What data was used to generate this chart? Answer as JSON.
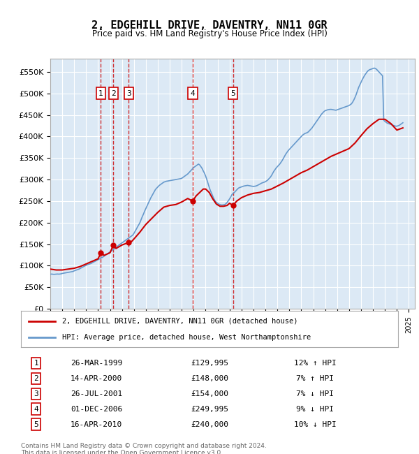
{
  "title": "2, EDGEHILL DRIVE, DAVENTRY, NN11 0GR",
  "subtitle": "Price paid vs. HM Land Registry's House Price Index (HPI)",
  "footer": "Contains HM Land Registry data © Crown copyright and database right 2024.\nThis data is licensed under the Open Government Licence v3.0.",
  "legend_line1": "2, EDGEHILL DRIVE, DAVENTRY, NN11 0GR (detached house)",
  "legend_line2": "HPI: Average price, detached house, West Northamptonshire",
  "table": [
    {
      "num": "1",
      "date": "26-MAR-1999",
      "price": "£129,995",
      "hpi": "12% ↑ HPI"
    },
    {
      "num": "2",
      "date": "14-APR-2000",
      "price": "£148,000",
      "hpi": "7% ↑ HPI"
    },
    {
      "num": "3",
      "date": "26-JUL-2001",
      "price": "£154,000",
      "hpi": "7% ↓ HPI"
    },
    {
      "num": "4",
      "date": "01-DEC-2006",
      "price": "£249,995",
      "hpi": "9% ↓ HPI"
    },
    {
      "num": "5",
      "date": "16-APR-2010",
      "price": "£240,000",
      "hpi": "10% ↓ HPI"
    }
  ],
  "sale_dates_decimal": [
    1999.23,
    2000.28,
    2001.57,
    2006.92,
    2010.29
  ],
  "sale_prices": [
    129995,
    148000,
    154000,
    249995,
    240000
  ],
  "red_color": "#cc0000",
  "blue_color": "#6699cc",
  "vline_color": "#cc0000",
  "bg_color": "#dce9f5",
  "plot_bg": "#dce9f5",
  "grid_color": "#ffffff",
  "ylim": [
    0,
    580000
  ],
  "yticks": [
    0,
    50000,
    100000,
    150000,
    200000,
    250000,
    300000,
    350000,
    400000,
    450000,
    500000,
    550000
  ],
  "xlim_start": 1995.0,
  "xlim_end": 2025.5,
  "hpi_data": {
    "years": [
      1995.0,
      1995.1,
      1995.2,
      1995.3,
      1995.4,
      1995.5,
      1995.6,
      1995.7,
      1995.8,
      1995.9,
      1996.0,
      1996.1,
      1996.2,
      1996.3,
      1996.4,
      1996.5,
      1996.6,
      1996.7,
      1996.8,
      1996.9,
      1997.0,
      1997.1,
      1997.2,
      1997.3,
      1997.4,
      1997.5,
      1997.6,
      1997.7,
      1997.8,
      1997.9,
      1998.0,
      1998.1,
      1998.2,
      1998.3,
      1998.4,
      1998.5,
      1998.6,
      1998.7,
      1998.8,
      1998.9,
      1999.0,
      1999.1,
      1999.2,
      1999.3,
      1999.4,
      1999.5,
      1999.6,
      1999.7,
      1999.8,
      1999.9,
      2000.0,
      2000.1,
      2000.2,
      2000.3,
      2000.4,
      2000.5,
      2000.6,
      2000.7,
      2000.8,
      2000.9,
      2001.0,
      2001.1,
      2001.2,
      2001.3,
      2001.4,
      2001.5,
      2001.6,
      2001.7,
      2001.8,
      2001.9,
      2002.0,
      2002.1,
      2002.2,
      2002.3,
      2002.4,
      2002.5,
      2002.6,
      2002.7,
      2002.8,
      2002.9,
      2003.0,
      2003.1,
      2003.2,
      2003.3,
      2003.4,
      2003.5,
      2003.6,
      2003.7,
      2003.8,
      2003.9,
      2004.0,
      2004.1,
      2004.2,
      2004.3,
      2004.4,
      2004.5,
      2004.6,
      2004.7,
      2004.8,
      2004.9,
      2005.0,
      2005.1,
      2005.2,
      2005.3,
      2005.4,
      2005.5,
      2005.6,
      2005.7,
      2005.8,
      2005.9,
      2006.0,
      2006.1,
      2006.2,
      2006.3,
      2006.4,
      2006.5,
      2006.6,
      2006.7,
      2006.8,
      2006.9,
      2007.0,
      2007.1,
      2007.2,
      2007.3,
      2007.4,
      2007.5,
      2007.6,
      2007.7,
      2007.8,
      2007.9,
      2008.0,
      2008.1,
      2008.2,
      2008.3,
      2008.4,
      2008.5,
      2008.6,
      2008.7,
      2008.8,
      2008.9,
      2009.0,
      2009.1,
      2009.2,
      2009.3,
      2009.4,
      2009.5,
      2009.6,
      2009.7,
      2009.8,
      2009.9,
      2010.0,
      2010.1,
      2010.2,
      2010.3,
      2010.4,
      2010.5,
      2010.6,
      2010.7,
      2010.8,
      2010.9,
      2011.0,
      2011.1,
      2011.2,
      2011.3,
      2011.4,
      2011.5,
      2011.6,
      2011.7,
      2011.8,
      2011.9,
      2012.0,
      2012.1,
      2012.2,
      2012.3,
      2012.4,
      2012.5,
      2012.6,
      2012.7,
      2012.8,
      2012.9,
      2013.0,
      2013.1,
      2013.2,
      2013.3,
      2013.4,
      2013.5,
      2013.6,
      2013.7,
      2013.8,
      2013.9,
      2014.0,
      2014.1,
      2014.2,
      2014.3,
      2014.4,
      2014.5,
      2014.6,
      2014.7,
      2014.8,
      2014.9,
      2015.0,
      2015.1,
      2015.2,
      2015.3,
      2015.4,
      2015.5,
      2015.6,
      2015.7,
      2015.8,
      2015.9,
      2016.0,
      2016.1,
      2016.2,
      2016.3,
      2016.4,
      2016.5,
      2016.6,
      2016.7,
      2016.8,
      2016.9,
      2017.0,
      2017.1,
      2017.2,
      2017.3,
      2017.4,
      2017.5,
      2017.6,
      2017.7,
      2017.8,
      2017.9,
      2018.0,
      2018.1,
      2018.2,
      2018.3,
      2018.4,
      2018.5,
      2018.6,
      2018.7,
      2018.8,
      2018.9,
      2019.0,
      2019.1,
      2019.2,
      2019.3,
      2019.4,
      2019.5,
      2019.6,
      2019.7,
      2019.8,
      2019.9,
      2020.0,
      2020.1,
      2020.2,
      2020.3,
      2020.4,
      2020.5,
      2020.6,
      2020.7,
      2020.8,
      2020.9,
      2021.0,
      2021.1,
      2021.2,
      2021.3,
      2021.4,
      2021.5,
      2021.6,
      2021.7,
      2021.8,
      2021.9,
      2022.0,
      2022.1,
      2022.2,
      2022.3,
      2022.4,
      2022.5,
      2022.6,
      2022.7,
      2022.8,
      2022.9,
      2023.0,
      2023.1,
      2023.2,
      2023.3,
      2023.4,
      2023.5,
      2023.6,
      2023.7,
      2023.8,
      2023.9,
      2024.0,
      2024.1,
      2024.2,
      2024.3,
      2024.4,
      2024.5
    ],
    "values": [
      80000,
      80500,
      80200,
      79800,
      80100,
      80400,
      80600,
      80300,
      80500,
      81000,
      82000,
      82500,
      83000,
      83500,
      84000,
      84500,
      85000,
      85500,
      86000,
      86500,
      88000,
      89000,
      90000,
      91000,
      92000,
      93500,
      95000,
      96500,
      98000,
      99500,
      101000,
      102000,
      103000,
      104000,
      105000,
      106500,
      108000,
      109500,
      111000,
      112500,
      114000,
      115500,
      117000,
      118500,
      120000,
      122000,
      124000,
      126000,
      128000,
      130000,
      132000,
      134000,
      136000,
      138000,
      140000,
      142000,
      144500,
      147000,
      149000,
      151000,
      153000,
      155000,
      157000,
      159000,
      161000,
      163000,
      165000,
      167000,
      169000,
      171000,
      175000,
      180000,
      185000,
      190000,
      195000,
      200000,
      207000,
      214000,
      220000,
      227000,
      233000,
      239000,
      245000,
      251000,
      257000,
      262000,
      267000,
      272000,
      277000,
      280000,
      283000,
      286000,
      288000,
      290000,
      292000,
      294000,
      295000,
      296000,
      296500,
      297000,
      297500,
      298000,
      298500,
      299000,
      299500,
      300000,
      300500,
      301000,
      301500,
      302000,
      303000,
      305000,
      307000,
      309000,
      311000,
      313000,
      316000,
      319000,
      322000,
      325000,
      328000,
      330000,
      332000,
      334000,
      336000,
      334000,
      330000,
      326000,
      320000,
      315000,
      308000,
      300000,
      291000,
      282000,
      274000,
      268000,
      261000,
      255000,
      250000,
      247000,
      245000,
      243000,
      242000,
      241000,
      241000,
      241500,
      242000,
      244000,
      247000,
      251000,
      255000,
      260000,
      265000,
      268000,
      270000,
      273000,
      276000,
      279000,
      281000,
      282000,
      283000,
      284000,
      285000,
      285500,
      286000,
      286500,
      286000,
      285500,
      285000,
      284500,
      284000,
      284500,
      285000,
      286000,
      287500,
      289000,
      290500,
      292000,
      293000,
      294000,
      295000,
      297000,
      299000,
      302000,
      305000,
      309000,
      314000,
      319000,
      323000,
      327000,
      330000,
      333000,
      336000,
      340000,
      344000,
      349000,
      354000,
      359000,
      363000,
      367000,
      370000,
      373000,
      376000,
      379000,
      382000,
      385000,
      388000,
      391000,
      394000,
      397000,
      400000,
      403000,
      405000,
      407000,
      408000,
      409000,
      411000,
      414000,
      417000,
      420000,
      424000,
      428000,
      432000,
      436000,
      440000,
      444000,
      448000,
      452000,
      455000,
      458000,
      460000,
      461000,
      462000,
      462500,
      463000,
      463000,
      462500,
      462000,
      461500,
      461000,
      462000,
      463000,
      464000,
      465000,
      466000,
      467000,
      468000,
      469000,
      470000,
      471000,
      472000,
      474000,
      476000,
      480000,
      485000,
      491000,
      498000,
      506000,
      514000,
      520000,
      526000,
      532000,
      537000,
      542000,
      546000,
      550000,
      553000,
      555000,
      556000,
      557000,
      558000,
      559000,
      558000,
      556000,
      553000,
      550000,
      547000,
      544000,
      541000,
      438000,
      435000,
      433000,
      431000,
      430000,
      429000,
      428000,
      427000,
      426000,
      425000,
      424000,
      424000,
      425000,
      426000,
      428000,
      430000,
      432000
    ]
  },
  "red_line_data": {
    "years": [
      1995.0,
      1995.5,
      1996.0,
      1996.5,
      1997.0,
      1997.5,
      1998.0,
      1998.5,
      1999.0,
      1999.23,
      1999.5,
      2000.0,
      2000.28,
      2000.5,
      2001.0,
      2001.57,
      2001.8,
      2002.0,
      2002.5,
      2003.0,
      2003.5,
      2004.0,
      2004.5,
      2005.0,
      2005.5,
      2006.0,
      2006.5,
      2006.92,
      2007.2,
      2007.5,
      2007.8,
      2008.0,
      2008.3,
      2008.6,
      2008.9,
      2009.2,
      2009.5,
      2009.8,
      2010.0,
      2010.29,
      2010.6,
      2011.0,
      2011.5,
      2012.0,
      2012.5,
      2013.0,
      2013.5,
      2014.0,
      2014.5,
      2015.0,
      2015.5,
      2016.0,
      2016.5,
      2017.0,
      2017.5,
      2018.0,
      2018.5,
      2019.0,
      2019.5,
      2020.0,
      2020.5,
      2021.0,
      2021.5,
      2022.0,
      2022.5,
      2023.0,
      2023.5,
      2024.0,
      2024.5
    ],
    "values": [
      92000,
      90000,
      90000,
      92000,
      94000,
      98000,
      104000,
      110000,
      116000,
      129995,
      124000,
      130000,
      148000,
      140000,
      148000,
      154000,
      156000,
      162000,
      178000,
      196000,
      210000,
      224000,
      236000,
      240000,
      242000,
      248000,
      256000,
      249995,
      262000,
      270000,
      278000,
      278000,
      270000,
      255000,
      243000,
      238000,
      238000,
      240000,
      245000,
      240000,
      250000,
      258000,
      264000,
      268000,
      270000,
      274000,
      278000,
      285000,
      292000,
      300000,
      308000,
      316000,
      322000,
      330000,
      338000,
      346000,
      354000,
      360000,
      366000,
      372000,
      385000,
      402000,
      418000,
      430000,
      440000,
      440000,
      430000,
      415000,
      420000
    ]
  }
}
